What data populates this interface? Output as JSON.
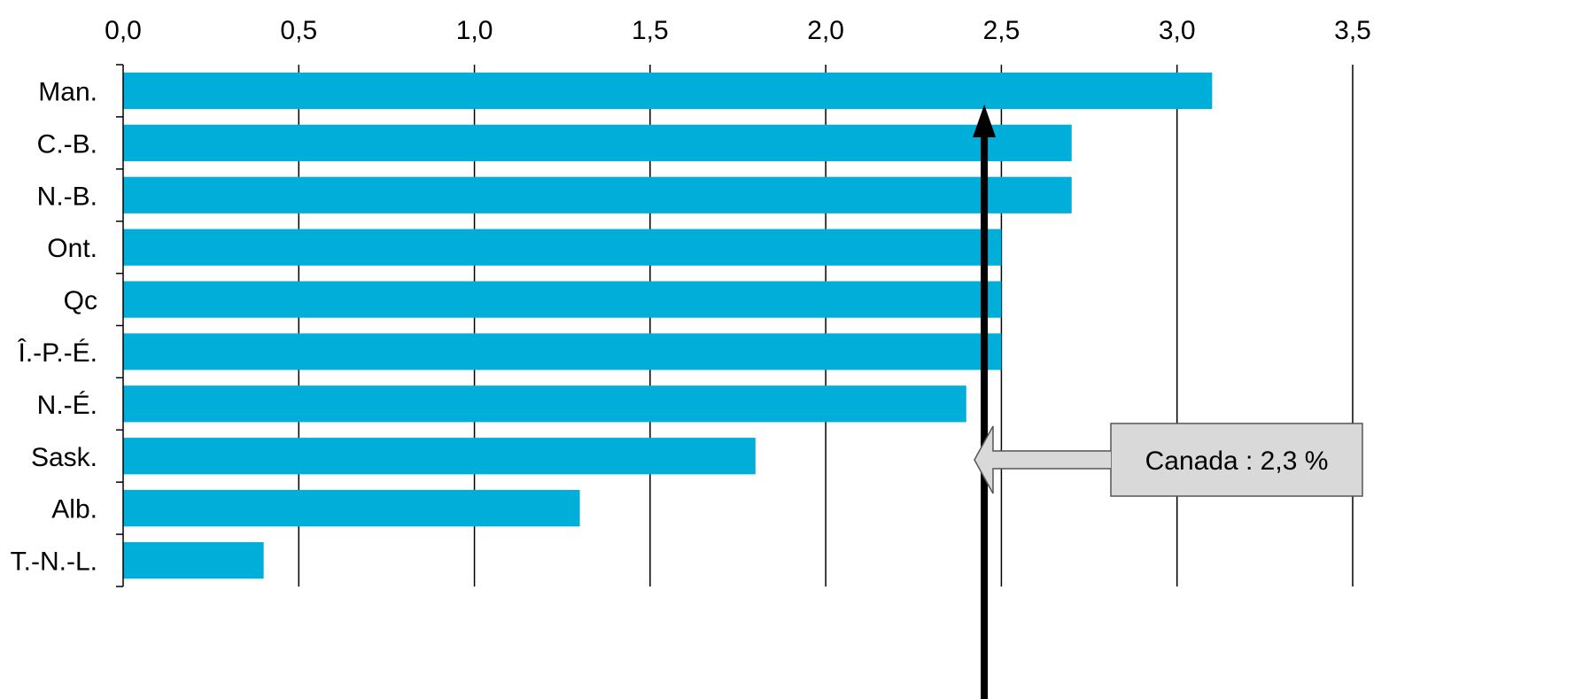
{
  "chart_data": {
    "type": "bar",
    "orientation": "horizontal",
    "categories": [
      "Man.",
      "C.-B.",
      "N.-B.",
      "Ont.",
      "Qc",
      "Î.-P.-É.",
      "N.-É.",
      "Sask.",
      "Alb.",
      "T.-N.-L."
    ],
    "values": [
      3.1,
      2.7,
      2.7,
      2.5,
      2.5,
      2.5,
      2.4,
      1.8,
      1.3,
      0.4
    ],
    "x_ticks": [
      "0,0",
      "0,5",
      "1,0",
      "1,5",
      "2,0",
      "2,5",
      "3,0",
      "3,5"
    ],
    "xlim": [
      0,
      3.5
    ],
    "grid": "vertical",
    "x_axis_position": "top",
    "bar_color": "#00AEDA",
    "reference_line": {
      "value": 2.3
    },
    "annotation": {
      "text": "Canada : 2,3 %"
    }
  }
}
